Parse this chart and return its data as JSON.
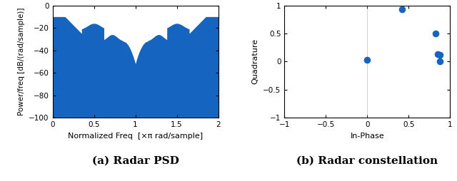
{
  "psd_xlim": [
    0,
    2
  ],
  "psd_ylim": [
    -100,
    0
  ],
  "psd_xticks": [
    0,
    0.5,
    1.0,
    1.5,
    2.0
  ],
  "psd_yticks": [
    0,
    -20,
    -40,
    -60,
    -80,
    -100
  ],
  "psd_xlabel": "Normalized Freq  [×π rad/sample]",
  "psd_ylabel": "Power/freq [dB/(rad/sample)]",
  "psd_color_dark": "#1565c0",
  "psd_color_light": "#5baee0",
  "constellation_points_x": [
    0.0,
    0.42,
    0.82,
    0.85,
    0.88,
    0.88
  ],
  "constellation_points_y": [
    0.03,
    0.93,
    0.5,
    0.13,
    0.12,
    0.0
  ],
  "constellation_color": "#1565c0",
  "constellation_xlim": [
    -1,
    1
  ],
  "constellation_ylim": [
    -1,
    1
  ],
  "constellation_xticks": [
    -1,
    -0.5,
    0,
    0.5,
    1
  ],
  "constellation_yticks": [
    -1,
    -0.5,
    0,
    0.5,
    1
  ],
  "constellation_xlabel": "In-Phase",
  "constellation_ylabel": "Quadrature",
  "caption_a": "(a) Radar PSD",
  "caption_b": "(b) Radar constellation",
  "caption_fontsize": 11
}
